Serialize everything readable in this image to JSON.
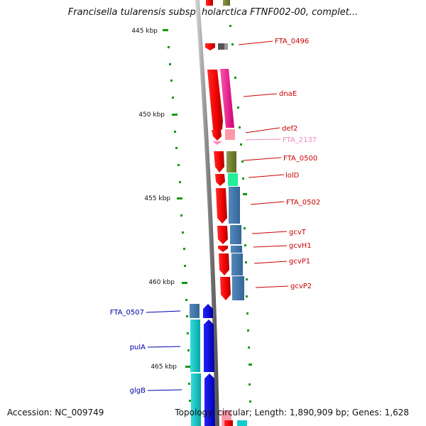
{
  "title": "Francisella tularensis subsp. holarctica FTNF002-00, complet...",
  "accession": "Accession: NC_009749",
  "summary": "Topology: circular; Length: 1,890,909 bp; Genes: 1,628",
  "scale_labels": [
    "445 kbp",
    "450 kbp",
    "455 kbp",
    "460 kbp",
    "465 kbp"
  ],
  "genes_right": [
    "FTA_0496",
    "dnaE",
    "def2",
    "FTA_2137",
    "FTA_0500",
    "lolD",
    "FTA_0502",
    "gcvT",
    "gcvH1",
    "gcvP1",
    "gcvP2"
  ],
  "genes_left": [
    "FTA_0507",
    "pulA",
    "glgB"
  ],
  "colors": {
    "forward_strand": "#ff0000",
    "reverse_strand": "#0000ee",
    "tick": "#119911",
    "label_red": "#cc0000",
    "label_pink": "#ee88bb",
    "label_blue": "#0000aa",
    "backbone": "#888888",
    "cat_magenta": "#ee1188",
    "cat_olive": "#778833",
    "cat_green": "#22ee99",
    "cat_steel": "#4477aa",
    "cat_pink": "#ff99aa",
    "cat_cyan": "#11bbbb",
    "cat_gray": "#555555"
  }
}
